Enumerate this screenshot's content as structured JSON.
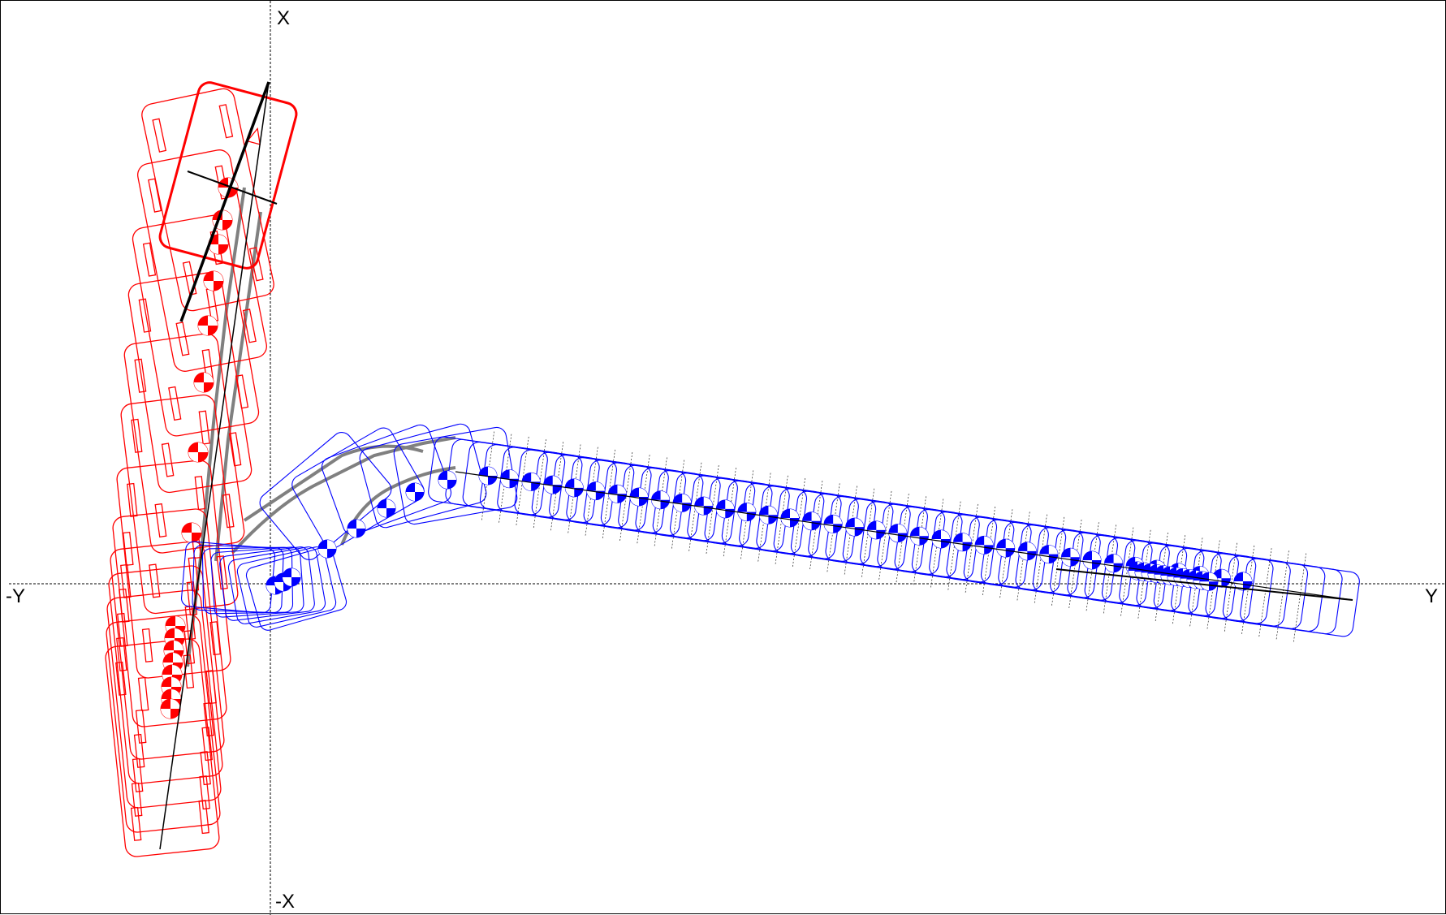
{
  "axes": {
    "x_positive_label": "X",
    "x_negative_label": "-X",
    "y_positive_label": "Y",
    "y_negative_label": "-Y"
  },
  "colors": {
    "vehicle_1": "#ff0000",
    "vehicle_2": "#0000ff",
    "path": "#808080",
    "axis": "#000000"
  }
}
